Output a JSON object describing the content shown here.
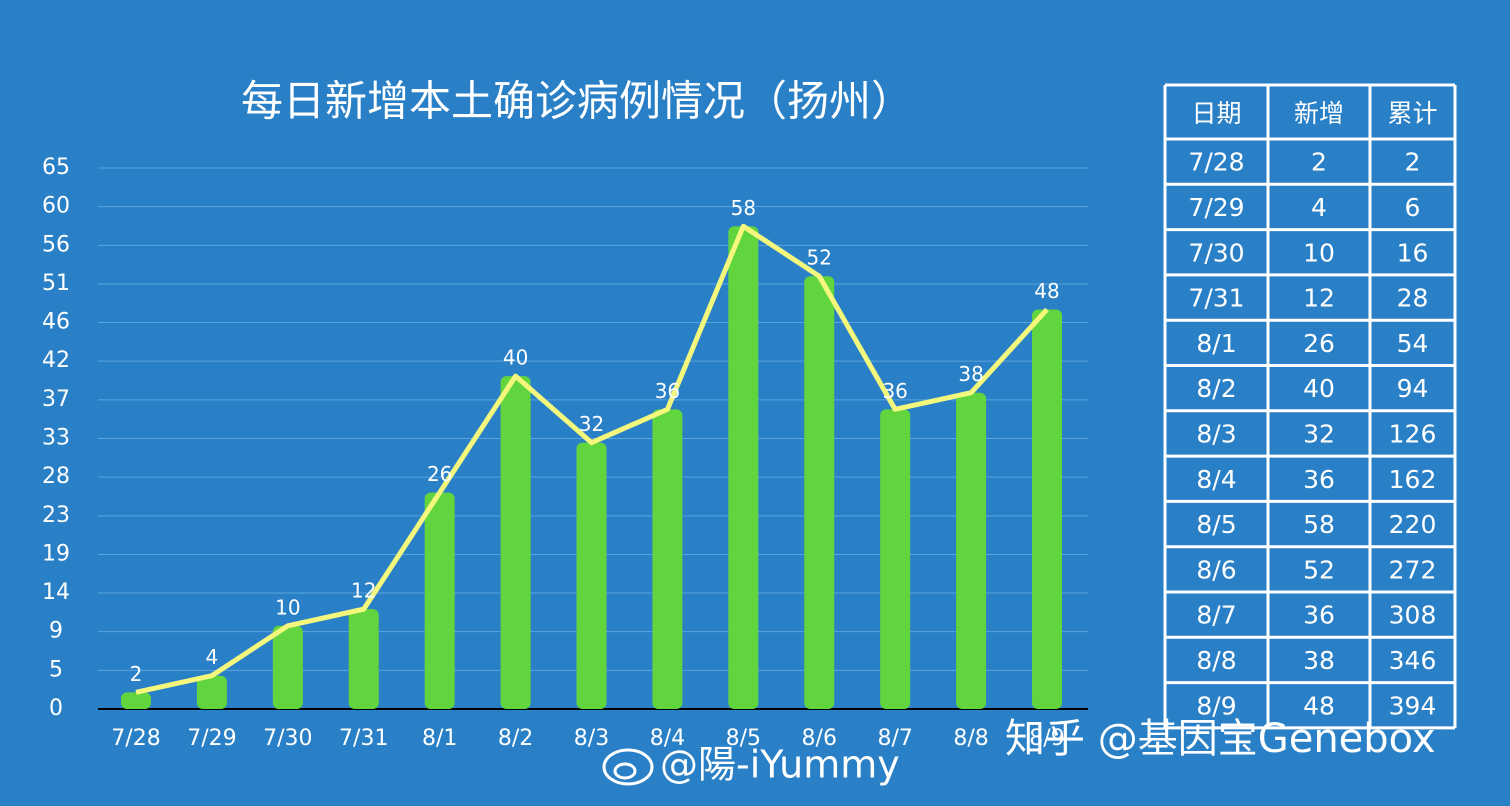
{
  "chart_data": {
    "type": "bar",
    "title": "每日新增本土确诊病例情况（扬州）",
    "categories": [
      "7/28",
      "7/29",
      "7/30",
      "7/31",
      "8/1",
      "8/2",
      "8/3",
      "8/4",
      "8/5",
      "8/6",
      "8/7",
      "8/8",
      "8/9"
    ],
    "values": [
      2,
      4,
      10,
      12,
      26,
      40,
      32,
      36,
      58,
      52,
      36,
      38,
      48
    ],
    "color": "#62d43e",
    "line_color": "#f3f77c",
    "ylim": [
      0,
      65
    ],
    "yticks": [
      0,
      {
        "value": 4.64,
        "label": "5"
      },
      {
        "value": 9.29,
        "label": "9"
      },
      {
        "value": 13.93,
        "label": "14"
      },
      {
        "value": 18.57,
        "label": "19"
      },
      {
        "value": 23.21,
        "label": "23"
      },
      {
        "value": 27.86,
        "label": "28"
      },
      {
        "value": 32.5,
        "label": "33"
      },
      {
        "value": 37.14,
        "label": "37"
      },
      {
        "value": 41.79,
        "label": "42"
      },
      {
        "value": 46.43,
        "label": "46"
      },
      {
        "value": 51.07,
        "label": "51"
      },
      {
        "value": 55.71,
        "label": "56"
      },
      {
        "value": 60.36,
        "label": "60"
      },
      65
    ],
    "grid": true
  },
  "table": {
    "header": [
      "日期",
      "新增",
      "累计"
    ],
    "rows": [
      [
        "7/28",
        "2",
        "2"
      ],
      [
        "7/29",
        "4",
        "6"
      ],
      [
        "7/30",
        "10",
        "16"
      ],
      [
        "7/31",
        "12",
        "28"
      ],
      [
        "8/1",
        "26",
        "54"
      ],
      [
        "8/2",
        "40",
        "94"
      ],
      [
        "8/3",
        "32",
        "126"
      ],
      [
        "8/4",
        "36",
        "162"
      ],
      [
        "8/5",
        "58",
        "220"
      ],
      [
        "8/6",
        "52",
        "272"
      ],
      [
        "8/7",
        "36",
        "308"
      ],
      [
        "8/8",
        "38",
        "346"
      ],
      [
        "8/9",
        "48",
        "394"
      ]
    ]
  },
  "watermarks": [
    "知乎 @基因宝Genebox",
    "@陽-iYummy"
  ]
}
